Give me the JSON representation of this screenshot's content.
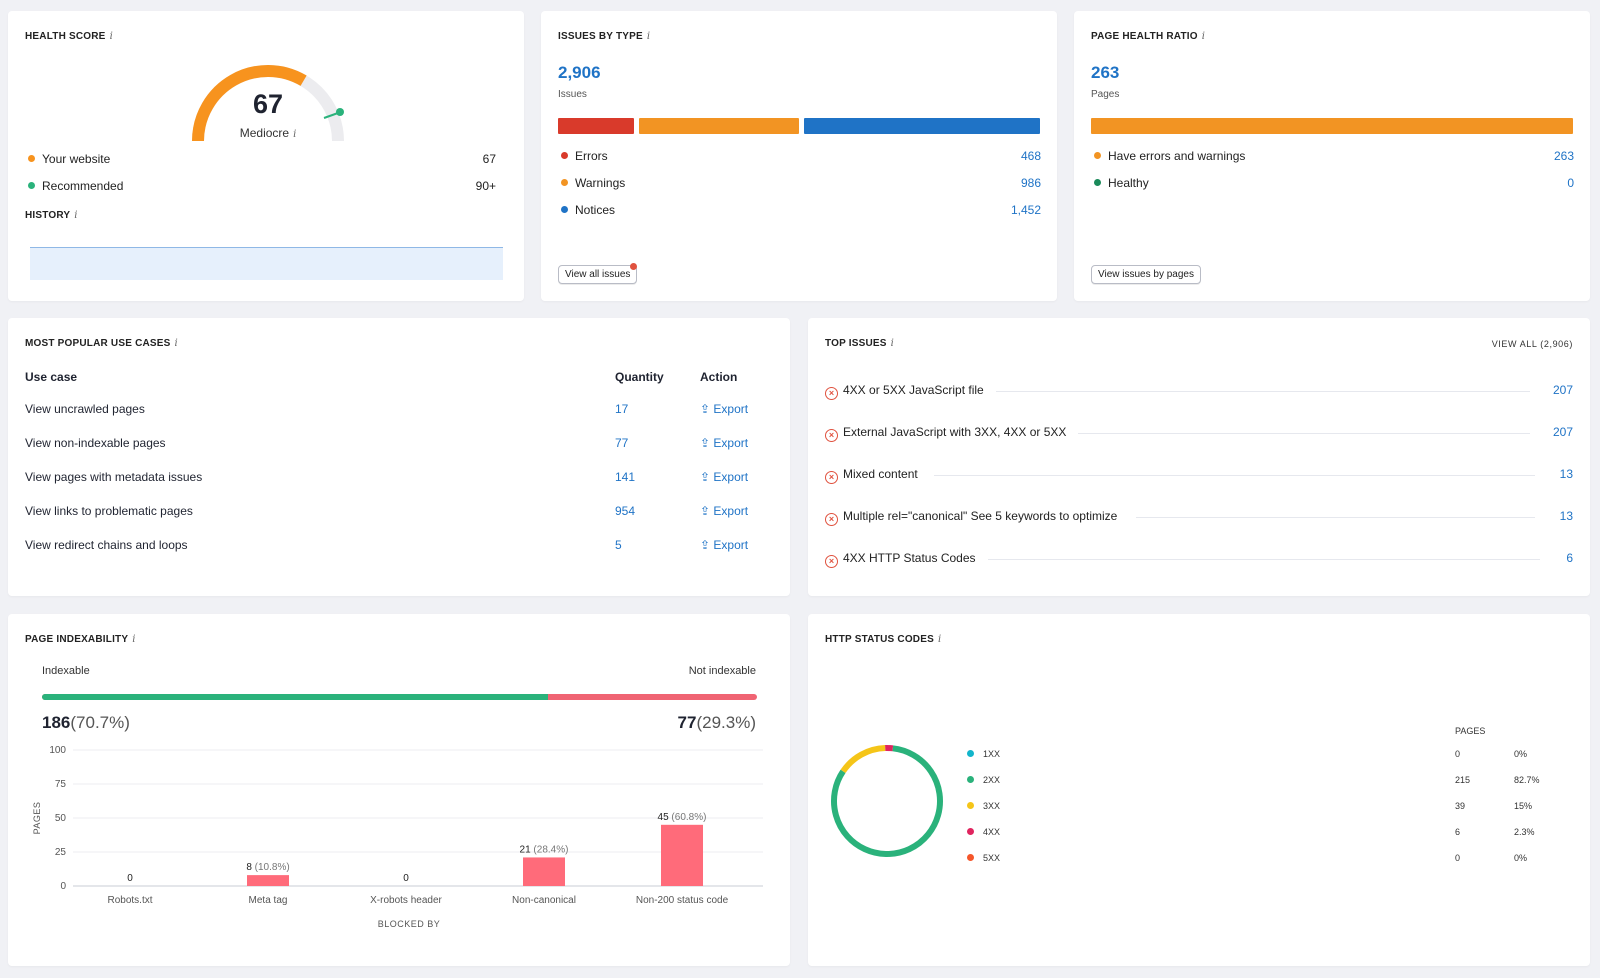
{
  "health_score": {
    "title": "HEALTH SCORE",
    "info": "i",
    "score": "67",
    "rating": "Mediocre",
    "score_fraction": 0.67,
    "items": [
      {
        "label": "Your website",
        "value": "67",
        "color": "#f7931e"
      },
      {
        "label": "Recommended",
        "value": "90+",
        "color": "#2ab27b"
      }
    ],
    "history_title": "HISTORY"
  },
  "issues_by_type": {
    "title": "ISSUES BY TYPE",
    "total": "2,906",
    "total_label": "Issues",
    "items": [
      {
        "label": "Errors",
        "value": "468",
        "color": "#d93a2b",
        "count": 468
      },
      {
        "label": "Warnings",
        "value": "986",
        "color": "#f29423",
        "count": 986
      },
      {
        "label": "Notices",
        "value": "1,452",
        "color": "#1f73c6",
        "count": 1452
      }
    ],
    "button": "View all issues"
  },
  "page_health_ratio": {
    "title": "PAGE HEALTH RATIO",
    "total": "263",
    "total_label": "Pages",
    "items": [
      {
        "label": "Have errors and warnings",
        "value": "263",
        "color": "#f29423"
      },
      {
        "label": "Healthy",
        "value": "0",
        "color": "#1a8a5a"
      }
    ],
    "button": "View issues by pages"
  },
  "use_cases": {
    "title": "MOST POPULAR USE CASES",
    "headers": {
      "use_case": "Use case",
      "quantity": "Quantity",
      "action": "Action"
    },
    "rows": [
      {
        "label": "View uncrawled pages",
        "quantity": "17",
        "action": "Export"
      },
      {
        "label": "View non-indexable pages",
        "quantity": "77",
        "action": "Export"
      },
      {
        "label": "View pages with metadata issues",
        "quantity": "141",
        "action": "Export"
      },
      {
        "label": "View links to problematic pages",
        "quantity": "954",
        "action": "Export"
      },
      {
        "label": "View redirect chains and loops",
        "quantity": "5",
        "action": "Export"
      }
    ]
  },
  "top_issues": {
    "title": "TOP ISSUES",
    "view_all": "VIEW ALL (2,906)",
    "items": [
      {
        "label": "4XX or 5XX JavaScript file",
        "value": "207"
      },
      {
        "label": "External JavaScript with 3XX, 4XX or 5XX",
        "value": "207"
      },
      {
        "label": "Mixed content",
        "value": "13"
      },
      {
        "label": "Multiple rel=\"canonical\" See 5 keywords to optimize",
        "value": "13"
      },
      {
        "label": "4XX HTTP Status Codes",
        "value": "6"
      }
    ]
  },
  "page_indexability": {
    "title": "PAGE INDEXABILITY",
    "indexable_label": "Indexable",
    "not_indexable_label": "Not indexable",
    "indexable_count": "186",
    "indexable_pct": "(70.7%)",
    "not_indexable_count": "77",
    "not_indexable_pct": "(29.3%)",
    "indexable_fraction": 0.707
  },
  "chart_data": {
    "type": "bar",
    "categories": [
      "Robots.txt",
      "Meta tag",
      "X-robots header",
      "Non-canonical",
      "Non-200 status code"
    ],
    "values": [
      0,
      8,
      0,
      21,
      45
    ],
    "value_labels": [
      "0",
      "8",
      "0",
      "21",
      "45"
    ],
    "pct_labels": [
      "",
      "(10.8%)",
      "",
      "(28.4%)",
      "(60.8%)"
    ],
    "xlabel": "BLOCKED BY",
    "ylabel": "PAGES",
    "yticks": [
      "100",
      "75",
      "50",
      "25",
      "0"
    ],
    "ylim": [
      0,
      100
    ],
    "bar_color": "#ff6b7a",
    "grid": true
  },
  "http_status": {
    "title": "HTTP STATUS CODES",
    "pages_header": "PAGES",
    "rows": [
      {
        "code": "1XX",
        "pages": "0",
        "pct": "0%",
        "color": "#12b5cb",
        "share": 0
      },
      {
        "code": "2XX",
        "pages": "215",
        "pct": "82.7%",
        "color": "#2ab27b",
        "share": 82.7
      },
      {
        "code": "3XX",
        "pages": "39",
        "pct": "15%",
        "color": "#f5c518",
        "share": 15
      },
      {
        "code": "4XX",
        "pages": "6",
        "pct": "2.3%",
        "color": "#e0245e",
        "share": 2.3
      },
      {
        "code": "5XX",
        "pages": "0",
        "pct": "0%",
        "color": "#f5562a",
        "share": 0
      }
    ]
  }
}
